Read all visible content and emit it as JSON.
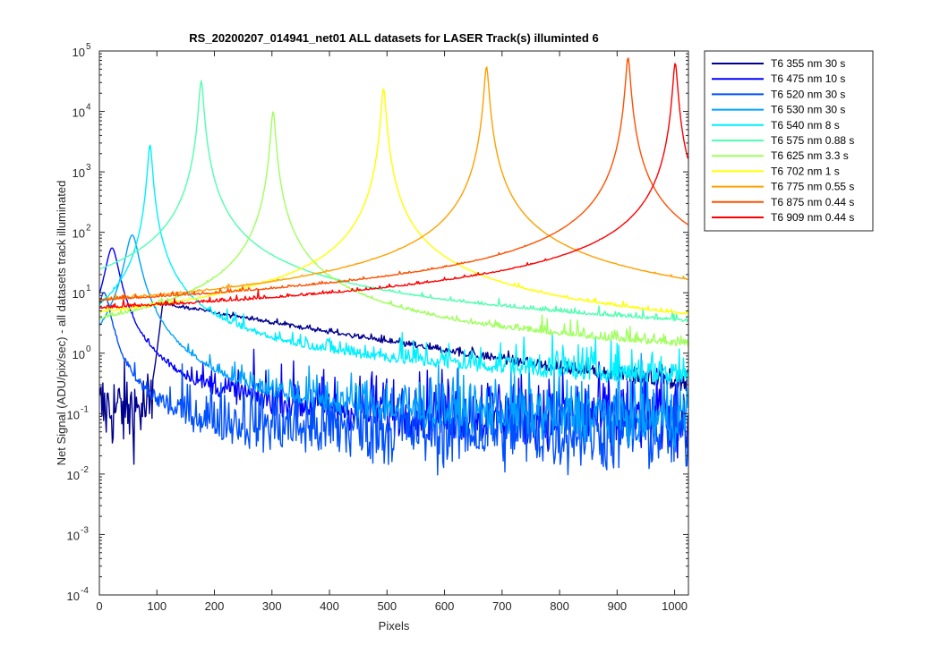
{
  "chart_data": {
    "type": "line",
    "title": "RS_20200207_014941_net01 ALL datasets for LASER  Track(s) illuminted 6",
    "xlabel": "Pixels",
    "ylabel": "Net Signal (ADU/pix/sec) - all datasets track illuminated",
    "xlim": [
      0,
      1024
    ],
    "ylim_log10": [
      -4,
      5
    ],
    "yscale": "log",
    "x_ticks": [
      0,
      100,
      200,
      300,
      400,
      500,
      600,
      700,
      800,
      900,
      1000
    ],
    "x_tick_labels": [
      "0",
      "100",
      "200",
      "300",
      "400",
      "500",
      "600",
      "700",
      "800",
      "900",
      "1000"
    ],
    "y_ticks_log10": [
      -4,
      -3,
      -2,
      -1,
      0,
      1,
      2,
      3,
      4,
      5
    ],
    "y_tick_base": "10",
    "y_tick_exponents": [
      "-4",
      "-3",
      "-2",
      "-1",
      "0",
      "1",
      "2",
      "3",
      "4",
      "5"
    ],
    "grid": false,
    "legend_position": "outside-top-right",
    "series": [
      {
        "name": "T6 355 nm 30 s",
        "color": "#00008f",
        "peak_x": 110,
        "peak_y": 6.5,
        "baseline": 0.12
      },
      {
        "name": "T6 475 nm 10 s",
        "color": "#0000ff",
        "peak_x": 22,
        "peak_y": 55,
        "baseline": 0.08
      },
      {
        "name": "T6 520 nm 30 s",
        "color": "#0050ff",
        "peak_x": 8,
        "peak_y": 10,
        "baseline": 0.05
      },
      {
        "name": "T6 530 nm 30 s",
        "color": "#00a0ff",
        "peak_x": 57,
        "peak_y": 90,
        "baseline": 0.07
      },
      {
        "name": "T6 540 nm 8 s",
        "color": "#00efff",
        "peak_x": 88,
        "peak_y": 2800,
        "baseline": 0.2
      },
      {
        "name": "T6 575 nm 0.88 s",
        "color": "#50ffaf",
        "peak_x": 177,
        "peak_y": 32000,
        "baseline": 0.2
      },
      {
        "name": "T6 625 nm 3.3 s",
        "color": "#a0ff5f",
        "peak_x": 302,
        "peak_y": 10000,
        "baseline": 0.2
      },
      {
        "name": "T6 702 nm 1 s",
        "color": "#ffff00",
        "peak_x": 494,
        "peak_y": 24000,
        "baseline": 0.2
      },
      {
        "name": "T6 775 nm 0.55 s",
        "color": "#ffa000",
        "peak_x": 673,
        "peak_y": 55000,
        "baseline": 0.2
      },
      {
        "name": "T6 875 nm 0.44 s",
        "color": "#ff5000",
        "peak_x": 919,
        "peak_y": 78000,
        "baseline": 0.3
      },
      {
        "name": "T6 909 nm 0.44 s",
        "color": "#ff0000",
        "peak_x": 1001,
        "peak_y": 63000,
        "baseline": 0.3
      }
    ]
  }
}
